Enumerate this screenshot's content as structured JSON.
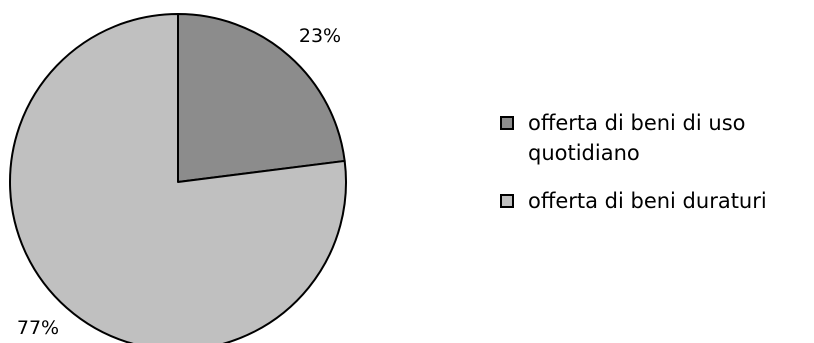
{
  "chart_data": {
    "type": "pie",
    "title": "",
    "slices": [
      {
        "label": "offerta di beni di uso quotidiano",
        "value": 23,
        "value_label": "23%",
        "color": "#8c8c8c"
      },
      {
        "label": "offerta di beni duraturi",
        "value": 77,
        "value_label": "77%",
        "color": "#c0c0c0"
      }
    ],
    "start": "12 o'clock",
    "direction": "clockwise",
    "legend_position": "right"
  }
}
